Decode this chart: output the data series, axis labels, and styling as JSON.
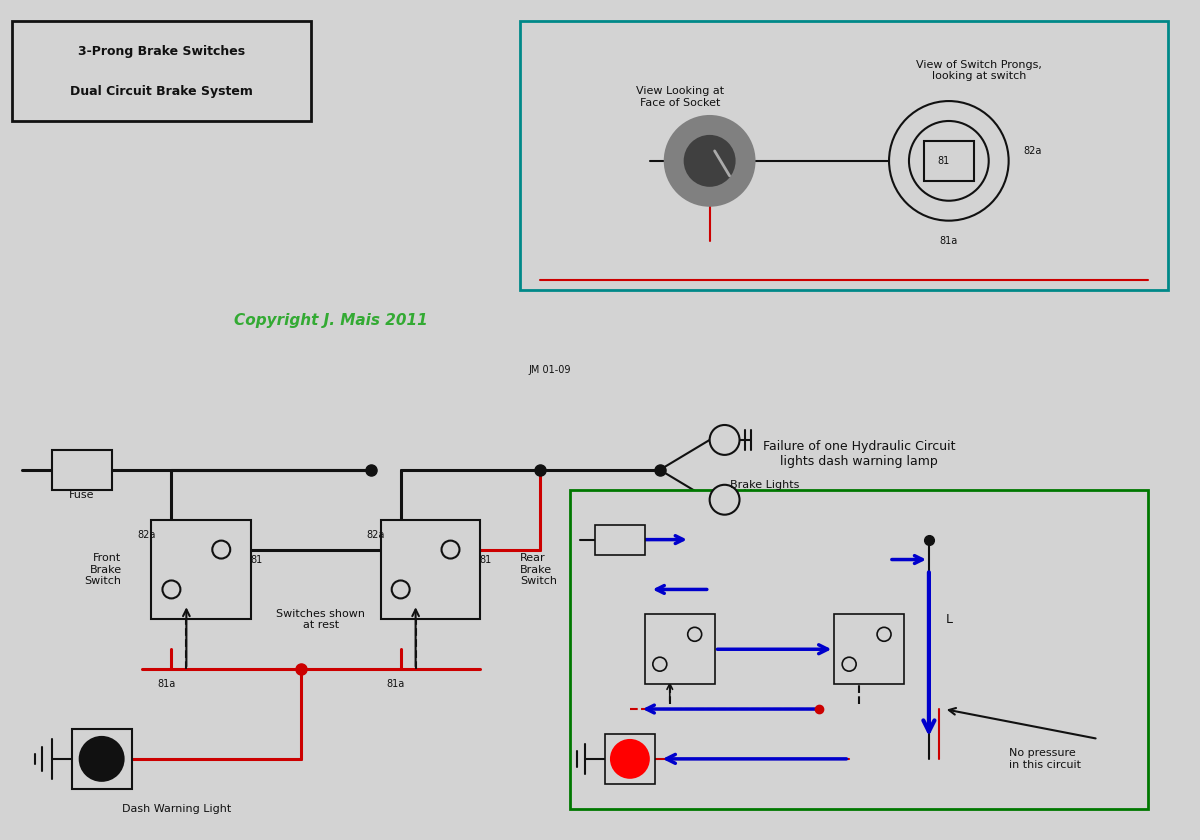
{
  "bg_color": "#d3d3d3",
  "copyright_text": "Copyright J. Mais 2011",
  "jm_text": "JM 01-09",
  "dash_warning_label": "Dash Warning Light",
  "front_brake_label": "Front\nBrake\nSwitch",
  "rear_brake_label": "Rear\nBrake\nSwitch",
  "switches_shown_label": "Switches shown\nat rest",
  "fuse_label": "Fuse",
  "brake_lights_label": "Brake Lights",
  "inset_title": "Failure of one Hydraulic Circuit\nlights dash warning lamp",
  "inset_label": "No pressure\nin this circuit",
  "view_socket_label": "View Looking at\nFace of Socket",
  "view_prongs_label": "View of Switch Prongs,\nlooking at switch",
  "bottom_box_line1": "Dual Circuit Brake System",
  "bottom_box_line2": "3-Prong Brake Switches",
  "wire_colors": {
    "red": "#cc0000",
    "black": "#111111",
    "blue": "#0000cc",
    "dark_red": "#8b0000",
    "green": "#007700",
    "teal": "#008888"
  },
  "lw_main": 2.2,
  "lw_thin": 1.5,
  "lw_wire": 2.0
}
